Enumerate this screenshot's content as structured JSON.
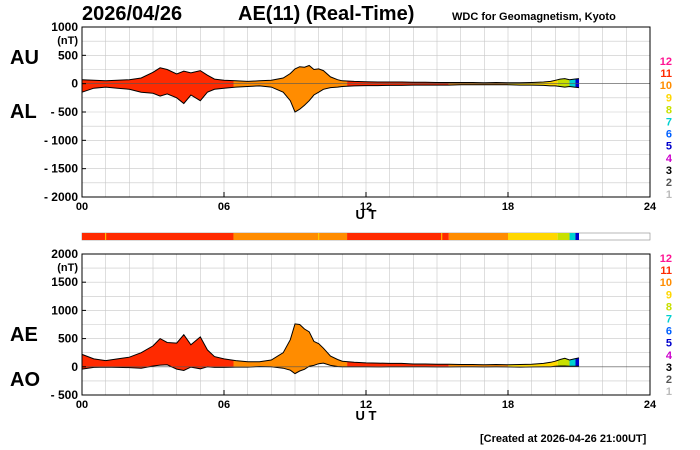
{
  "header": {
    "date": "2026/04/26",
    "title": "AE(11) (Real-Time)",
    "institution": "WDC for Geomagnetism, Kyoto"
  },
  "footer": "[Created at 2026-04-26 21:00UT]",
  "legend": {
    "labels": [
      "12",
      "11",
      "10",
      "9",
      "8",
      "7",
      "6",
      "5",
      "4",
      "3",
      "2",
      "1"
    ],
    "colors": [
      "#ff1493",
      "#ff2a00",
      "#ff8c00",
      "#ffd700",
      "#c8e000",
      "#00d0d0",
      "#0060ff",
      "#0000cc",
      "#cc00cc",
      "#000000",
      "#555555",
      "#bbbbbb"
    ]
  },
  "station_bar": {
    "segments": [
      {
        "start": 0,
        "end": 6.4,
        "color": "#ff2a00"
      },
      {
        "start": 6.4,
        "end": 11.2,
        "color": "#ff8c00"
      },
      {
        "start": 11.2,
        "end": 15.5,
        "color": "#ff2a00"
      },
      {
        "start": 15.5,
        "end": 18.0,
        "color": "#ff8c00"
      },
      {
        "start": 18.0,
        "end": 20.1,
        "color": "#ffd700"
      },
      {
        "start": 20.1,
        "end": 20.6,
        "color": "#c8e000"
      },
      {
        "start": 20.6,
        "end": 20.85,
        "color": "#00d0d0"
      },
      {
        "start": 20.85,
        "end": 21.0,
        "color": "#0000cc"
      }
    ],
    "markers": [
      1.0,
      10.0,
      15.2
    ]
  },
  "chart_data": [
    {
      "type": "area",
      "title": "AE(11) (Real-Time)",
      "panel_labels": [
        "AU",
        "AL"
      ],
      "ylabel": "(nT)",
      "xlabel": "U T",
      "xlim": [
        0,
        24
      ],
      "ylim": [
        -2000,
        1000
      ],
      "xticks": [
        "00",
        "06",
        "12",
        "18",
        "24"
      ],
      "yticks": [
        "1000",
        "500",
        "0",
        "- 500",
        "- 1000",
        "- 1500",
        "- 2000"
      ],
      "grid": true,
      "x": [
        0,
        0.5,
        1,
        1.5,
        2,
        2.5,
        3,
        3.3,
        3.6,
        4,
        4.3,
        4.6,
        5,
        5.3,
        5.6,
        6,
        6.5,
        7,
        7.5,
        8,
        8.5,
        8.8,
        9,
        9.2,
        9.4,
        9.6,
        9.8,
        10,
        10.2,
        10.5,
        10.8,
        11,
        11.5,
        12,
        12.5,
        13,
        13.5,
        14,
        14.5,
        15,
        15.5,
        16,
        16.5,
        17,
        17.5,
        18,
        18.5,
        19,
        19.5,
        19.8,
        20,
        20.2,
        20.4,
        20.6,
        20.8,
        21
      ],
      "series": [
        {
          "name": "AU",
          "values": [
            70,
            60,
            50,
            60,
            70,
            100,
            200,
            280,
            250,
            170,
            220,
            190,
            230,
            150,
            80,
            60,
            50,
            40,
            50,
            60,
            100,
            180,
            260,
            300,
            290,
            320,
            250,
            260,
            230,
            120,
            70,
            50,
            40,
            35,
            30,
            30,
            30,
            25,
            25,
            20,
            20,
            20,
            20,
            15,
            20,
            15,
            15,
            20,
            30,
            40,
            60,
            80,
            90,
            70,
            80,
            90
          ]
        },
        {
          "name": "AL",
          "values": [
            -150,
            -80,
            -60,
            -80,
            -100,
            -150,
            -170,
            -220,
            -180,
            -250,
            -350,
            -200,
            -300,
            -150,
            -100,
            -80,
            -60,
            -50,
            -40,
            -60,
            -150,
            -300,
            -500,
            -450,
            -380,
            -300,
            -200,
            -150,
            -100,
            -70,
            -60,
            -50,
            -40,
            -35,
            -35,
            -30,
            -30,
            -25,
            -25,
            -25,
            -25,
            -20,
            -20,
            -20,
            -20,
            -20,
            -25,
            -25,
            -30,
            -40,
            -40,
            -50,
            -60,
            -50,
            -60,
            -70
          ]
        }
      ],
      "segment_colors": [
        {
          "start": 0,
          "end": 6.4,
          "color": "#ff2a00"
        },
        {
          "start": 6.4,
          "end": 11.2,
          "color": "#ff8c00"
        },
        {
          "start": 11.2,
          "end": 15.5,
          "color": "#ff2a00"
        },
        {
          "start": 15.5,
          "end": 18.0,
          "color": "#ff8c00"
        },
        {
          "start": 18.0,
          "end": 20.1,
          "color": "#ffd700"
        },
        {
          "start": 20.1,
          "end": 20.6,
          "color": "#c8e000"
        },
        {
          "start": 20.6,
          "end": 20.85,
          "color": "#00d0d0"
        },
        {
          "start": 20.85,
          "end": 21.0,
          "color": "#0000cc"
        }
      ]
    },
    {
      "type": "area",
      "title": "AE(11) (Real-Time)",
      "panel_labels": [
        "AE",
        "AO"
      ],
      "ylabel": "(nT)",
      "xlabel": "U T",
      "xlim": [
        0,
        24
      ],
      "ylim": [
        -500,
        2000
      ],
      "xticks": [
        "00",
        "06",
        "12",
        "18",
        "24"
      ],
      "yticks": [
        "2000",
        "1500",
        "1000",
        "500",
        "0",
        "- 500"
      ],
      "grid": true,
      "x": [
        0,
        0.5,
        1,
        1.5,
        2,
        2.5,
        3,
        3.3,
        3.6,
        4,
        4.3,
        4.6,
        5,
        5.3,
        5.6,
        6,
        6.5,
        7,
        7.5,
        8,
        8.5,
        8.8,
        9,
        9.2,
        9.4,
        9.6,
        9.8,
        10,
        10.2,
        10.5,
        10.8,
        11,
        11.5,
        12,
        12.5,
        13,
        13.5,
        14,
        14.5,
        15,
        15.5,
        16,
        16.5,
        17,
        17.5,
        18,
        18.5,
        19,
        19.5,
        19.8,
        20,
        20.2,
        20.4,
        20.6,
        20.8,
        21
      ],
      "series": [
        {
          "name": "AE",
          "values": [
            220,
            140,
            110,
            140,
            170,
            250,
            370,
            500,
            430,
            420,
            570,
            390,
            530,
            300,
            180,
            140,
            110,
            90,
            90,
            120,
            250,
            480,
            760,
            750,
            670,
            620,
            450,
            410,
            330,
            190,
            130,
            100,
            80,
            70,
            65,
            60,
            60,
            50,
            50,
            45,
            45,
            40,
            40,
            35,
            40,
            35,
            40,
            45,
            60,
            80,
            100,
            130,
            150,
            120,
            140,
            160
          ]
        },
        {
          "name": "AO",
          "values": [
            -40,
            -10,
            -5,
            -10,
            -15,
            -25,
            15,
            30,
            35,
            -40,
            -65,
            -5,
            -35,
            0,
            -10,
            -10,
            -5,
            -5,
            5,
            0,
            -25,
            -60,
            -120,
            -75,
            -45,
            10,
            25,
            55,
            65,
            25,
            5,
            0,
            0,
            0,
            -2,
            0,
            0,
            0,
            0,
            -2,
            -2,
            0,
            0,
            -2,
            0,
            -2,
            -5,
            -2,
            0,
            0,
            10,
            15,
            15,
            10,
            10,
            10
          ]
        }
      ],
      "segment_colors": [
        {
          "start": 0,
          "end": 6.4,
          "color": "#ff2a00"
        },
        {
          "start": 6.4,
          "end": 11.2,
          "color": "#ff8c00"
        },
        {
          "start": 11.2,
          "end": 15.5,
          "color": "#ff2a00"
        },
        {
          "start": 15.5,
          "end": 18.0,
          "color": "#ff8c00"
        },
        {
          "start": 18.0,
          "end": 20.1,
          "color": "#ffd700"
        },
        {
          "start": 20.1,
          "end": 20.6,
          "color": "#c8e000"
        },
        {
          "start": 20.6,
          "end": 20.85,
          "color": "#00d0d0"
        },
        {
          "start": 20.85,
          "end": 21.0,
          "color": "#0000cc"
        }
      ]
    }
  ]
}
